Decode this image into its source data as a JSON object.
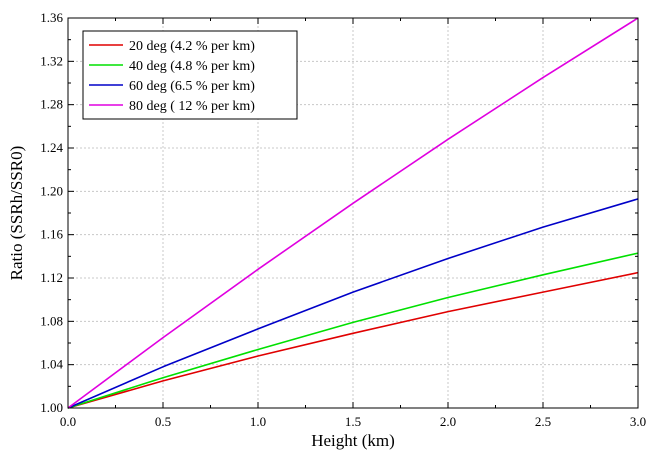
{
  "chart_data": {
    "type": "line",
    "title": "",
    "xlabel": "Height (km)",
    "ylabel": "Ratio (SSRh/SSR0)",
    "xlim": [
      0.0,
      3.0
    ],
    "ylim": [
      1.0,
      1.36
    ],
    "xticks": [
      0.0,
      0.5,
      1.0,
      1.5,
      2.0,
      2.5,
      3.0
    ],
    "xtick_labels": [
      "0.0",
      "0.5",
      "1.0",
      "1.5",
      "2.0",
      "2.5",
      "3.0"
    ],
    "yticks": [
      1.0,
      1.04,
      1.08,
      1.12,
      1.16,
      1.2,
      1.24,
      1.28,
      1.32,
      1.36
    ],
    "ytick_labels": [
      "1.00",
      "1.04",
      "1.08",
      "1.12",
      "1.16",
      "1.20",
      "1.24",
      "1.28",
      "1.32",
      "1.36"
    ],
    "grid": true,
    "legend_position": "top-left",
    "series": [
      {
        "name": "20 deg (4.2 % per km)",
        "color": "#e00000",
        "x": [
          0.0,
          0.5,
          1.0,
          1.5,
          2.0,
          2.5,
          3.0
        ],
        "y": [
          1.0,
          1.025,
          1.048,
          1.069,
          1.089,
          1.107,
          1.125
        ]
      },
      {
        "name": "40 deg (4.8 % per km)",
        "color": "#00e000",
        "x": [
          0.0,
          0.5,
          1.0,
          1.5,
          2.0,
          2.5,
          3.0
        ],
        "y": [
          1.0,
          1.028,
          1.054,
          1.079,
          1.102,
          1.123,
          1.143
        ]
      },
      {
        "name": "60 deg (6.5 % per km)",
        "color": "#0000c8",
        "x": [
          0.0,
          0.5,
          1.0,
          1.5,
          2.0,
          2.5,
          3.0
        ],
        "y": [
          1.0,
          1.038,
          1.073,
          1.107,
          1.138,
          1.167,
          1.193
        ]
      },
      {
        "name": "80 deg ( 12 % per km)",
        "color": "#e000e0",
        "x": [
          0.0,
          0.5,
          1.0,
          1.5,
          2.0,
          2.5,
          3.0
        ],
        "y": [
          1.0,
          1.065,
          1.128,
          1.189,
          1.248,
          1.305,
          1.36
        ]
      }
    ]
  }
}
